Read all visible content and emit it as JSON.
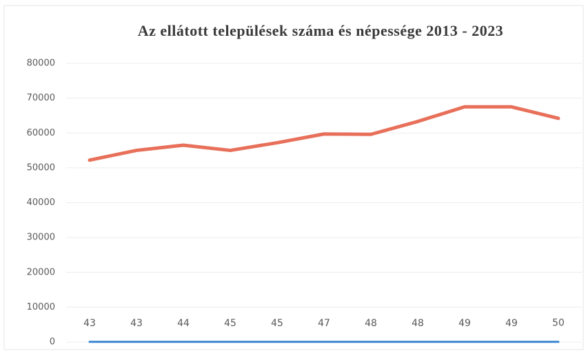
{
  "chart_data": {
    "type": "line",
    "title": "Az ellátott települések száma és népessége 2013 - 2023",
    "categories": [
      null,
      null,
      null,
      null,
      null,
      null,
      null,
      null,
      null,
      null,
      null
    ],
    "series": [
      {
        "color": "#e8705a",
        "values": [
          52200,
          55000,
          56500,
          55000,
          57200,
          59700,
          59600,
          63300,
          67500,
          67500,
          64200
        ]
      },
      {
        "color": "#3a85d0",
        "values": [
          43,
          43,
          44,
          45,
          45,
          47,
          48,
          48,
          49,
          49,
          50
        ],
        "data_labels": true
      }
    ],
    "ylim": [
      0,
      80000
    ],
    "yticks": [
      0,
      10000,
      20000,
      30000,
      40000,
      50000,
      60000,
      70000,
      80000
    ],
    "grid": true
  }
}
